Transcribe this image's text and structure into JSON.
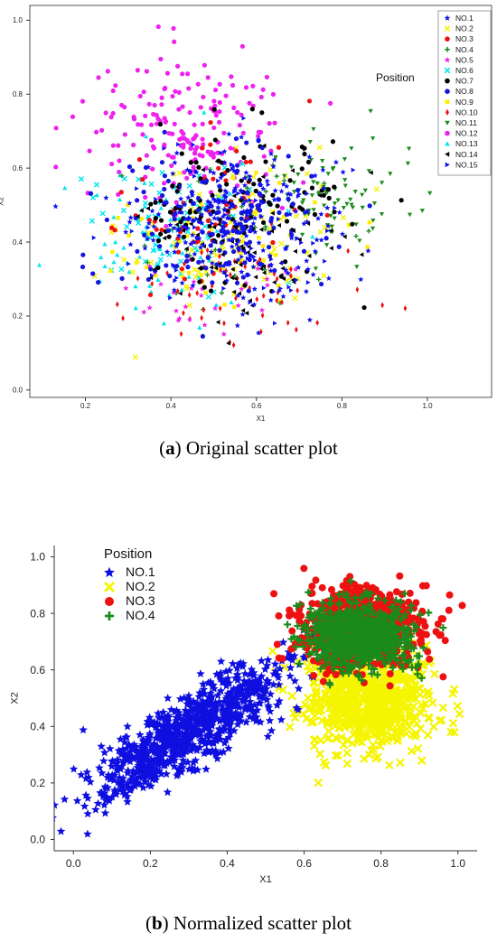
{
  "chart_data": [
    {
      "type": "scatter",
      "panel_label": "a",
      "caption": "Original scatter plot",
      "title": "",
      "xlabel": "X1",
      "ylabel": "X2",
      "xlim": [
        0.07,
        1.15
      ],
      "ylim": [
        -0.02,
        1.04
      ],
      "xticks": [
        0.2,
        0.4,
        0.6,
        0.8,
        1.0
      ],
      "yticks": [
        0.0,
        0.2,
        0.4,
        0.6,
        0.8,
        1.0
      ],
      "legend_title": "Position",
      "legend_position": "top-right",
      "grid": false,
      "series": [
        {
          "name": "NO.1",
          "color": "#1010ee",
          "marker": "star",
          "cx": 0.55,
          "cy": 0.46,
          "sx": 0.12,
          "sy": 0.1,
          "n": 200
        },
        {
          "name": "NO.2",
          "color": "#f5f500",
          "marker": "x",
          "cx": 0.55,
          "cy": 0.42,
          "sx": 0.13,
          "sy": 0.11,
          "n": 90
        },
        {
          "name": "NO.3",
          "color": "#ee1111",
          "marker": "circle",
          "cx": 0.5,
          "cy": 0.5,
          "sx": 0.12,
          "sy": 0.11,
          "n": 60
        },
        {
          "name": "NO.4",
          "color": "#228b22",
          "marker": "plus",
          "cx": 0.5,
          "cy": 0.42,
          "sx": 0.13,
          "sy": 0.11,
          "n": 40
        },
        {
          "name": "NO.5",
          "color": "#ee22ee",
          "marker": "star",
          "cx": 0.52,
          "cy": 0.28,
          "sx": 0.1,
          "sy": 0.07,
          "n": 30
        },
        {
          "name": "NO.6",
          "color": "#00e5ee",
          "marker": "x",
          "cx": 0.4,
          "cy": 0.46,
          "sx": 0.11,
          "sy": 0.09,
          "n": 70
        },
        {
          "name": "NO.7",
          "color": "#000000",
          "marker": "circle",
          "cx": 0.55,
          "cy": 0.5,
          "sx": 0.12,
          "sy": 0.1,
          "n": 110
        },
        {
          "name": "NO.8",
          "color": "#1515dd",
          "marker": "circle",
          "cx": 0.52,
          "cy": 0.45,
          "sx": 0.12,
          "sy": 0.1,
          "n": 140
        },
        {
          "name": "NO.9",
          "color": "#ffee00",
          "marker": "square",
          "cx": 0.5,
          "cy": 0.42,
          "sx": 0.13,
          "sy": 0.11,
          "n": 60
        },
        {
          "name": "NO.10",
          "color": "#ee1111",
          "marker": "diamond",
          "cx": 0.55,
          "cy": 0.28,
          "sx": 0.12,
          "sy": 0.08,
          "n": 60
        },
        {
          "name": "NO.11",
          "color": "#1a8a1a",
          "marker": "triangle-down",
          "cx": 0.78,
          "cy": 0.52,
          "sx": 0.08,
          "sy": 0.09,
          "n": 80
        },
        {
          "name": "NO.12",
          "color": "#ee22ee",
          "marker": "circle",
          "cx": 0.44,
          "cy": 0.7,
          "sx": 0.12,
          "sy": 0.1,
          "n": 190
        },
        {
          "name": "NO.13",
          "color": "#00e5ee",
          "marker": "triangle-up",
          "cx": 0.4,
          "cy": 0.42,
          "sx": 0.11,
          "sy": 0.1,
          "n": 70
        },
        {
          "name": "NO.14",
          "color": "#000000",
          "marker": "triangle-left",
          "cx": 0.58,
          "cy": 0.4,
          "sx": 0.12,
          "sy": 0.1,
          "n": 90
        },
        {
          "name": "NO.15",
          "color": "#1010ee",
          "marker": "triangle-right",
          "cx": 0.55,
          "cy": 0.45,
          "sx": 0.12,
          "sy": 0.1,
          "n": 100
        }
      ]
    },
    {
      "type": "scatter",
      "panel_label": "b",
      "caption": "Normalized scatter plot",
      "title": "",
      "xlabel": "X1",
      "ylabel": "X2",
      "xlim": [
        -0.05,
        1.05
      ],
      "ylim": [
        -0.04,
        1.04
      ],
      "xticks": [
        0.0,
        0.2,
        0.4,
        0.6,
        0.8,
        1.0
      ],
      "yticks": [
        0.0,
        0.2,
        0.4,
        0.6,
        0.8,
        1.0
      ],
      "legend_title": "Position",
      "legend_position": "top-left",
      "grid": false,
      "series": [
        {
          "name": "NO.1",
          "color": "#0f0fe0",
          "marker": "star",
          "cx": 0.3,
          "cy": 0.38,
          "sx": 0.13,
          "sy": 0.12,
          "corr": 0.85,
          "n": 900
        },
        {
          "name": "NO.2",
          "color": "#f5f500",
          "marker": "x",
          "cx": 0.77,
          "cy": 0.5,
          "sx": 0.08,
          "sy": 0.09,
          "corr": 0.0,
          "n": 700
        },
        {
          "name": "NO.3",
          "color": "#ee1111",
          "marker": "circle",
          "cx": 0.75,
          "cy": 0.75,
          "sx": 0.08,
          "sy": 0.07,
          "corr": 0.0,
          "n": 800
        },
        {
          "name": "NO.4",
          "color": "#1a8a1a",
          "marker": "plus",
          "cx": 0.74,
          "cy": 0.72,
          "sx": 0.065,
          "sy": 0.055,
          "corr": 0.0,
          "n": 900
        }
      ]
    }
  ]
}
